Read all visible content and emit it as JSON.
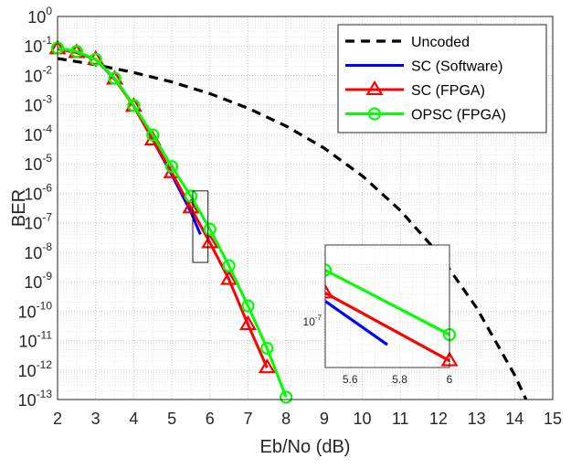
{
  "chart_data": {
    "type": "line",
    "xlabel": "Eb/No (dB)",
    "ylabel": "BER",
    "xlim": [
      2,
      15
    ],
    "ylim_exponent": [
      -13,
      0
    ],
    "y_scale": "log",
    "grid": true,
    "legend_position": "top-right",
    "x_ticks": [
      "2",
      "3",
      "4",
      "5",
      "6",
      "7",
      "8",
      "9",
      "10",
      "11",
      "12",
      "13",
      "14",
      "15"
    ],
    "y_ticks": [
      {
        "base": "10",
        "exp": "0"
      },
      {
        "base": "10",
        "exp": "-1"
      },
      {
        "base": "10",
        "exp": "-2"
      },
      {
        "base": "10",
        "exp": "-3"
      },
      {
        "base": "10",
        "exp": "-4"
      },
      {
        "base": "10",
        "exp": "-5"
      },
      {
        "base": "10",
        "exp": "-6"
      },
      {
        "base": "10",
        "exp": "-7"
      },
      {
        "base": "10",
        "exp": "-8"
      },
      {
        "base": "10",
        "exp": "-9"
      },
      {
        "base": "10",
        "exp": "-10"
      },
      {
        "base": "10",
        "exp": "-11"
      },
      {
        "base": "10",
        "exp": "-12"
      },
      {
        "base": "10",
        "exp": "-13"
      }
    ],
    "series": [
      {
        "name": "Uncoded",
        "color": "#000000",
        "style": "dashed",
        "marker": "none",
        "x": [
          2,
          3,
          4,
          5,
          6,
          7,
          8,
          9,
          10,
          11,
          12,
          13,
          14,
          14.3
        ],
        "y": [
          0.0375,
          0.023,
          0.0125,
          0.006,
          0.0024,
          0.00077,
          0.00019,
          3.4e-05,
          3.9e-06,
          2.6e-07,
          9e-09,
          1.3e-10,
          6.8e-13,
          1e-13
        ]
      },
      {
        "name": "SC (Software)",
        "color": "#0000ff",
        "style": "solid",
        "marker": "none",
        "x": [
          2,
          2.5,
          3,
          3.5,
          4,
          4.5,
          5,
          5.5,
          5.75
        ],
        "y": [
          0.08,
          0.06,
          0.035,
          0.0075,
          0.00095,
          6.5e-05,
          4.2e-06,
          2.3e-07,
          4e-08
        ]
      },
      {
        "name": "SC (FPGA)",
        "color": "#ff0000",
        "style": "solid",
        "marker": "triangle",
        "x": [
          2,
          2.5,
          3,
          3.5,
          4,
          4.5,
          5,
          5.5,
          6,
          6.5,
          7,
          7.5
        ],
        "y": [
          0.08,
          0.06,
          0.035,
          0.0075,
          0.0009,
          6.5e-05,
          5e-06,
          3.2e-07,
          2.1e-08,
          1.2e-09,
          3.5e-11,
          1.2e-12
        ]
      },
      {
        "name": "OPSC (FPGA)",
        "color": "#00ff00",
        "style": "solid",
        "marker": "circle",
        "x": [
          2,
          2.5,
          3,
          3.5,
          4,
          4.5,
          5,
          5.5,
          6,
          6.5,
          7,
          7.5,
          8
        ],
        "y": [
          0.085,
          0.065,
          0.035,
          0.008,
          0.00095,
          9.5e-05,
          8e-06,
          8e-07,
          6e-08,
          3.5e-09,
          1.5e-10,
          5.5e-12,
          1.2e-13
        ]
      }
    ],
    "inset": {
      "x_ticks": [
        "5.6",
        "5.8",
        "6"
      ],
      "y_tick": {
        "base": "10",
        "exp": "-7"
      }
    }
  }
}
